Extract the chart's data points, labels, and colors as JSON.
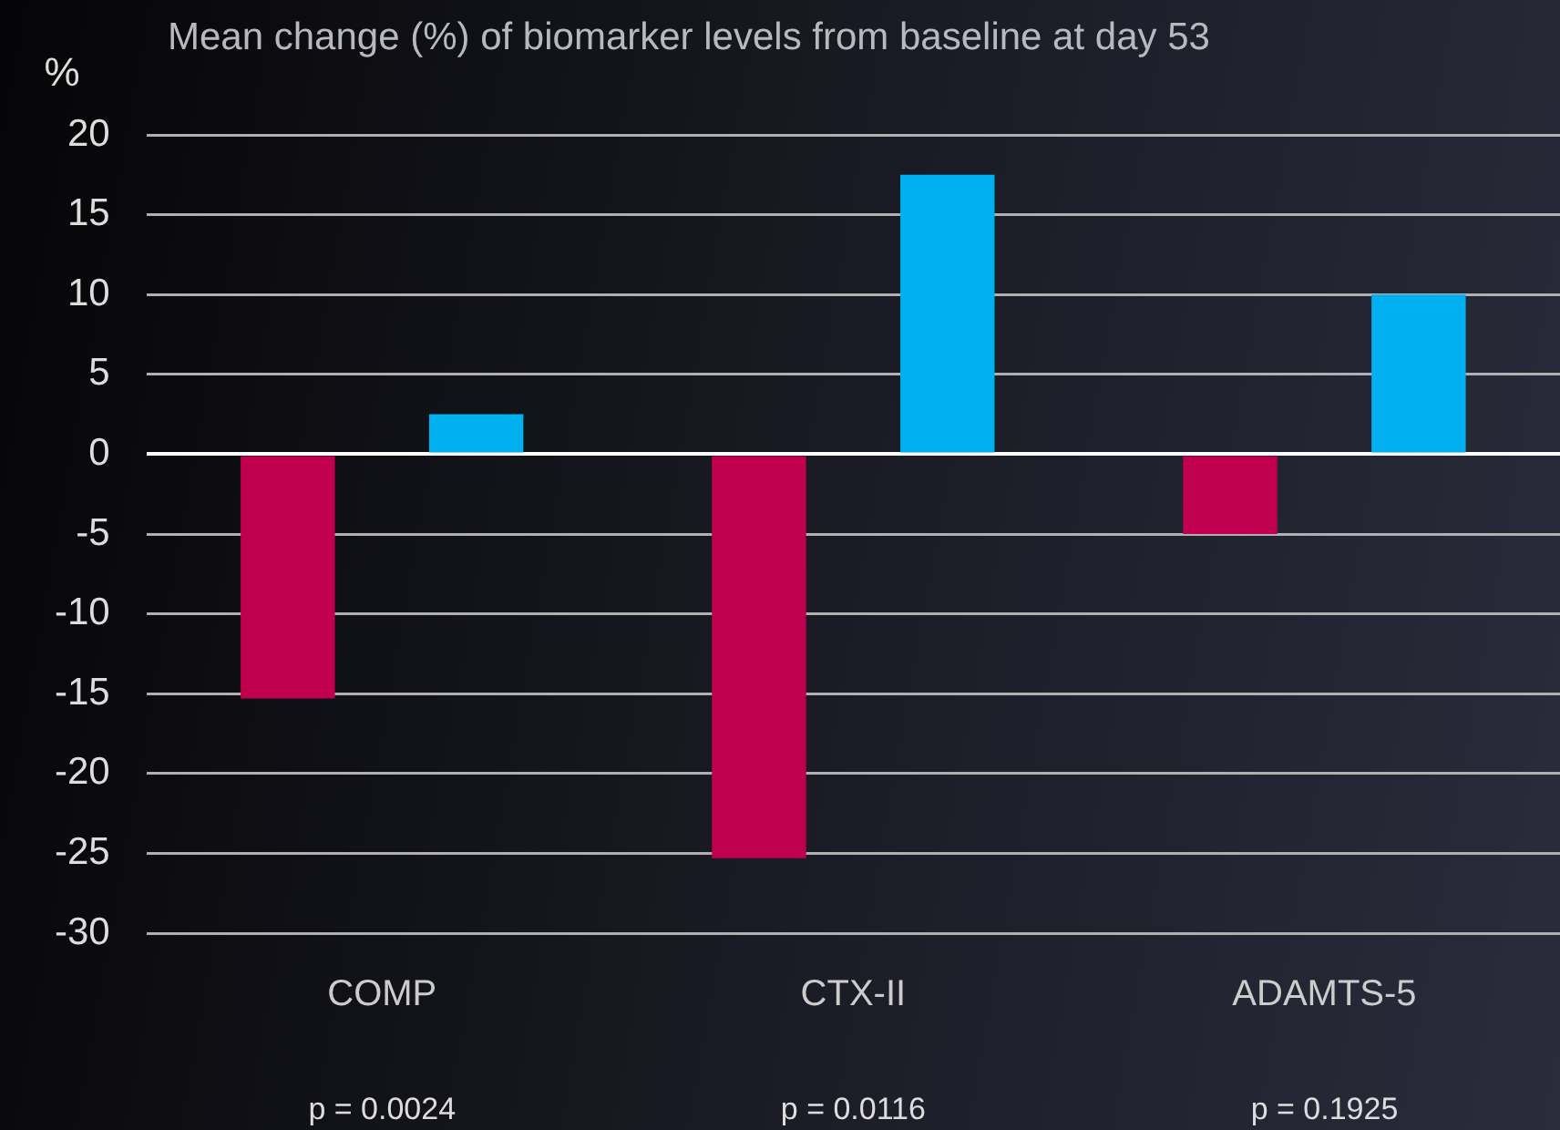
{
  "chart_data": {
    "type": "bar",
    "title": "Mean change (%) of biomarker levels from baseline at day 53",
    "ylabel": "%",
    "categories": [
      "COMP",
      "CTX-II",
      "ADAMTS-5"
    ],
    "series": [
      {
        "color": "#c0004e",
        "values": [
          -15.3,
          -25.3,
          -5
        ]
      },
      {
        "color": "#00b0f0",
        "values": [
          2.5,
          17.5,
          10
        ]
      }
    ],
    "ylim": [
      -30,
      20
    ],
    "yticks": [
      -30,
      -25,
      -20,
      -15,
      -10,
      -5,
      0,
      5,
      10,
      15,
      20
    ],
    "grid": "y",
    "legend": false,
    "annotations": [
      "p = 0.0024",
      "p = 0.0116",
      "p = 0.1925"
    ]
  }
}
